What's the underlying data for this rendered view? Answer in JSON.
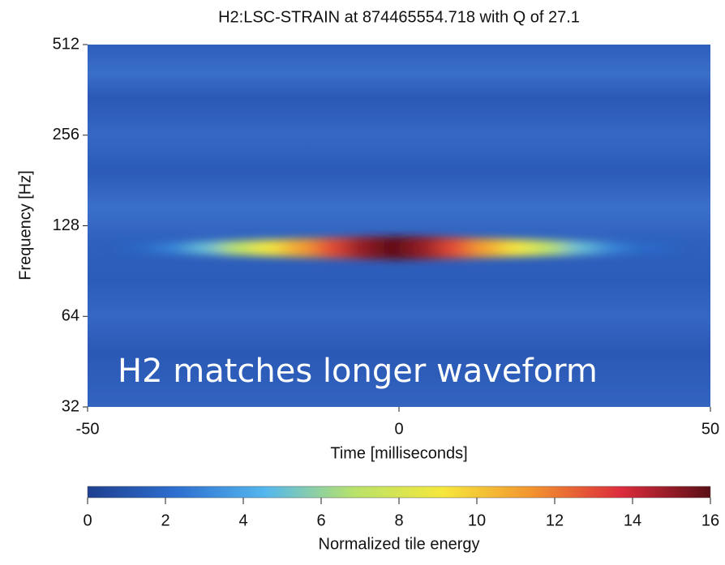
{
  "chart_data": {
    "type": "heatmap",
    "title": "H2:LSC-STRAIN at 874465554.718 with Q of 27.1",
    "xlabel": "Time [milliseconds]",
    "ylabel": "Frequency [Hz]",
    "annotation": "H2 matches longer waveform",
    "x": [
      -40,
      -35,
      -30,
      -25,
      -20,
      -15,
      -10,
      -5,
      0,
      5,
      10,
      15,
      20,
      25,
      30,
      35,
      40
    ],
    "y": [
      108,
      108,
      108,
      108,
      108,
      108,
      108,
      108,
      108,
      108,
      108,
      108,
      108,
      108,
      108,
      108,
      108
    ],
    "values": [
      2,
      3,
      5,
      7,
      9,
      11,
      13,
      15,
      16,
      15,
      13,
      11,
      9,
      7,
      5,
      3,
      2
    ],
    "xlim": [
      -50,
      50
    ],
    "xticks": [
      -50,
      0,
      50
    ],
    "ylim": [
      32,
      512
    ],
    "yticks": [
      32,
      64,
      128,
      256,
      512
    ],
    "yscale": "log",
    "colorbar": {
      "label": "Normalized tile energy",
      "clim": [
        0,
        16
      ],
      "ticks": [
        0,
        2,
        4,
        6,
        8,
        10,
        12,
        14,
        16
      ],
      "colormap": [
        "#1f3f8f",
        "#2d6fd0",
        "#54b7ee",
        "#b8e26a",
        "#f6e73c",
        "#f2932f",
        "#dc2c3c",
        "#5a0f16"
      ]
    }
  }
}
